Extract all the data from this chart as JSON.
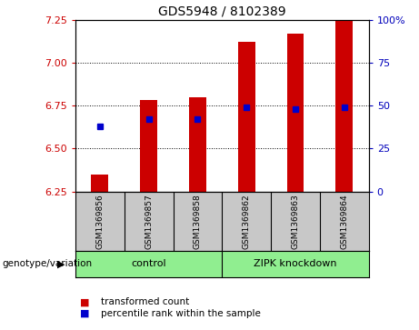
{
  "title": "GDS5948 / 8102389",
  "samples": [
    "GSM1369856",
    "GSM1369857",
    "GSM1369858",
    "GSM1369862",
    "GSM1369863",
    "GSM1369864"
  ],
  "bar_base": 6.25,
  "bar_tops": [
    6.35,
    6.78,
    6.8,
    7.12,
    7.17,
    7.25
  ],
  "percentile_values": [
    6.63,
    6.67,
    6.67,
    6.74,
    6.73,
    6.74
  ],
  "bar_color": "#cc0000",
  "percentile_color": "#0000cc",
  "ylim_left": [
    6.25,
    7.25
  ],
  "ylim_right": [
    0,
    100
  ],
  "yticks_left": [
    6.25,
    6.5,
    6.75,
    7.0,
    7.25
  ],
  "yticks_right": [
    0,
    25,
    50,
    75,
    100
  ],
  "ytick_labels_right": [
    "0",
    "25",
    "50",
    "75",
    "100%"
  ],
  "grid_values": [
    6.5,
    6.75,
    7.0
  ],
  "control_label": "control",
  "knockdown_label": "ZIPK knockdown",
  "group_label": "genotype/variation",
  "legend_bar_label": "transformed count",
  "legend_pct_label": "percentile rank within the sample",
  "control_color": "#90ee90",
  "knockdown_color": "#90ee90",
  "tick_area_color": "#c8c8c8",
  "bar_width": 0.35,
  "plot_bg_color": "#ffffff"
}
